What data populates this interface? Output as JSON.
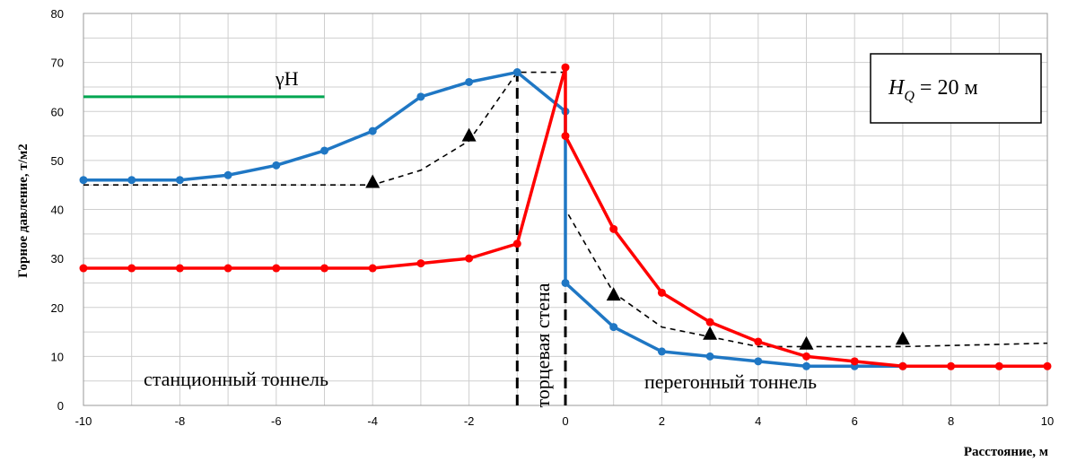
{
  "chart_data": {
    "type": "line",
    "title": "",
    "xlabel": "Расстояние, м",
    "ylabel": "Горное давление, т/м2",
    "xlim": [
      -10,
      10
    ],
    "ylim": [
      0,
      80
    ],
    "x_ticks": [
      -10,
      -8,
      -6,
      -4,
      -2,
      0,
      2,
      4,
      6,
      8,
      10
    ],
    "y_ticks": [
      0,
      10,
      20,
      30,
      40,
      50,
      60,
      70,
      80
    ],
    "grid": true,
    "colors": {
      "blue": "#1f77c4",
      "red": "#ff0000",
      "green": "#00a651",
      "black": "#000000"
    },
    "series": [
      {
        "key": "blue",
        "style": "solid-markers",
        "points": [
          [
            -10,
            46
          ],
          [
            -9,
            46
          ],
          [
            -8,
            46
          ],
          [
            -7,
            47
          ],
          [
            -6,
            49
          ],
          [
            -5,
            52
          ],
          [
            -4,
            56
          ],
          [
            -3,
            63
          ],
          [
            -2,
            66
          ],
          [
            -1,
            68
          ],
          [
            0,
            60
          ],
          [
            0,
            25
          ],
          [
            1,
            16
          ],
          [
            2,
            11
          ],
          [
            3,
            10
          ],
          [
            4,
            9
          ],
          [
            5,
            8
          ],
          [
            6,
            8
          ],
          [
            7,
            8
          ]
        ]
      },
      {
        "key": "red",
        "style": "solid-markers",
        "points": [
          [
            -10,
            28
          ],
          [
            -9,
            28
          ],
          [
            -8,
            28
          ],
          [
            -7,
            28
          ],
          [
            -6,
            28
          ],
          [
            -5,
            28
          ],
          [
            -4,
            28
          ],
          [
            -3,
            29
          ],
          [
            -2,
            30
          ],
          [
            -1,
            33
          ],
          [
            0,
            69
          ],
          [
            0,
            55
          ],
          [
            1,
            36
          ],
          [
            2,
            23
          ],
          [
            3,
            17
          ],
          [
            4,
            13
          ],
          [
            5,
            10
          ],
          [
            6,
            9
          ],
          [
            7,
            8
          ],
          [
            8,
            8
          ],
          [
            9,
            8
          ],
          [
            10,
            8
          ]
        ]
      },
      {
        "key": "black",
        "style": "dashed",
        "points": [
          [
            -10,
            45
          ],
          [
            -4,
            45
          ],
          [
            -3,
            48
          ],
          [
            -2,
            54
          ],
          [
            -1,
            68
          ],
          [
            0,
            68
          ],
          [
            0,
            40
          ],
          [
            1,
            23
          ],
          [
            2,
            16
          ],
          [
            3,
            14
          ],
          [
            4,
            12
          ],
          [
            5,
            12
          ],
          [
            6,
            12
          ],
          [
            7,
            12
          ],
          [
            10,
            12.7
          ]
        ]
      },
      {
        "key": "green",
        "style": "solid",
        "points": [
          [
            -10,
            63
          ],
          [
            -5,
            63
          ]
        ]
      }
    ],
    "triangle_markers": [
      [
        -4,
        45.5
      ],
      [
        -2,
        55
      ],
      [
        1,
        22.5
      ],
      [
        3,
        14.5
      ],
      [
        5,
        12.5
      ],
      [
        7,
        13.5
      ]
    ],
    "vertical_dashed_lines": [
      -1,
      0
    ],
    "annotations": {
      "gamma_h": "γH",
      "hq_label_main": "H",
      "hq_label_sub": "Q",
      "hq_label_rest": " = 20 м",
      "station_tunnel": "станционный тоннель",
      "end_wall": "торцевая стена",
      "running_tunnel": "перегонный тоннель"
    }
  }
}
